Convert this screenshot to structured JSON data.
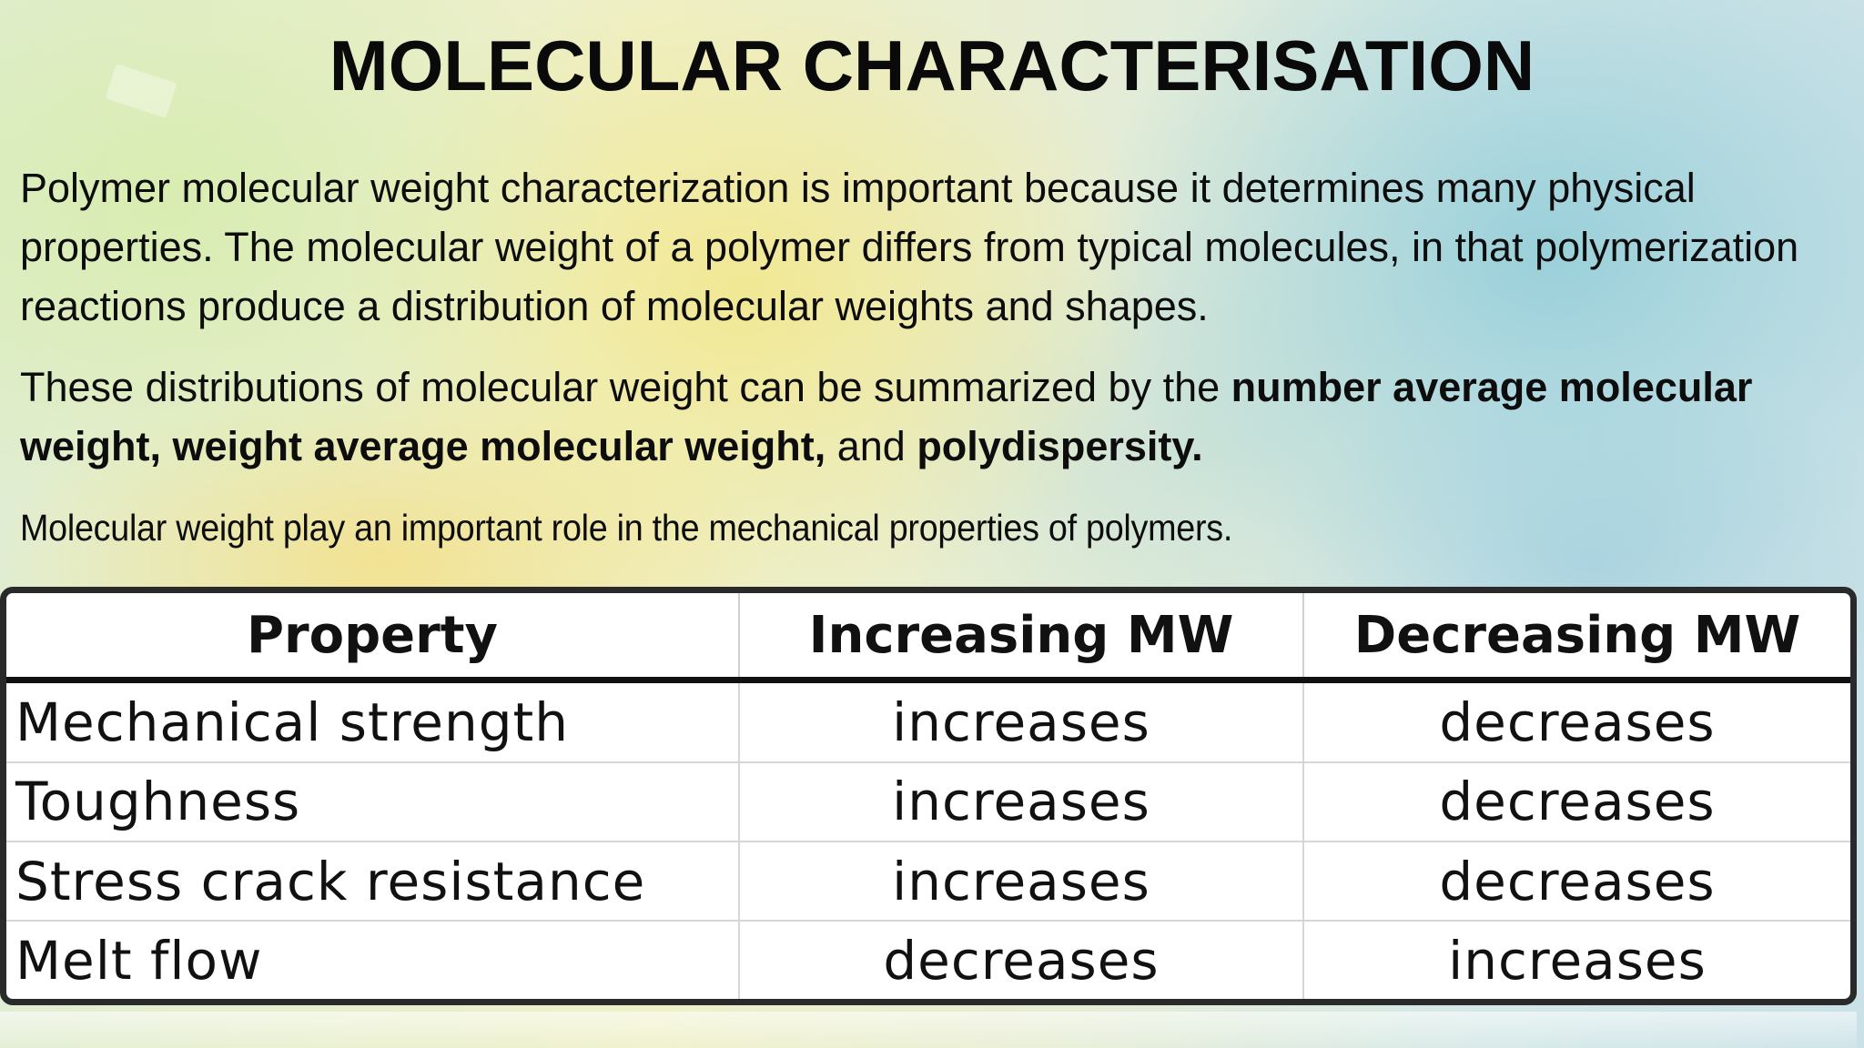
{
  "slide": {
    "title": "MOLECULAR CHARACTERISATION",
    "paragraph1": "Polymer molecular weight characterization is important because it determines many physical properties. The molecular weight of a polymer differs from typical molecules, in that polymerization reactions produce a distribution of molecular weights and shapes.",
    "paragraph2": {
      "part1": "These distributions of molecular weight can be summarized by the ",
      "bold1": "number average molecular weight, weight average molecular weight,",
      "part2": " and ",
      "bold2": "polydispersity."
    },
    "paragraph3": "Molecular weight play an important role in the mechanical properties of polymers."
  },
  "table": {
    "headers": [
      "Property",
      "Increasing MW",
      "Decreasing MW"
    ],
    "rows": [
      [
        "Mechanical strength",
        "increases",
        "decreases"
      ],
      [
        "Toughness",
        "increases",
        "decreases"
      ],
      [
        "Stress crack resistance",
        "increases",
        "decreases"
      ],
      [
        "Melt flow",
        "decreases",
        "increases"
      ]
    ]
  },
  "colors": {
    "background_left": "#cfe3b6",
    "background_mid": "#e5e7a6",
    "background_right": "#a9cfd8",
    "table_border": "#2a2a2a"
  }
}
